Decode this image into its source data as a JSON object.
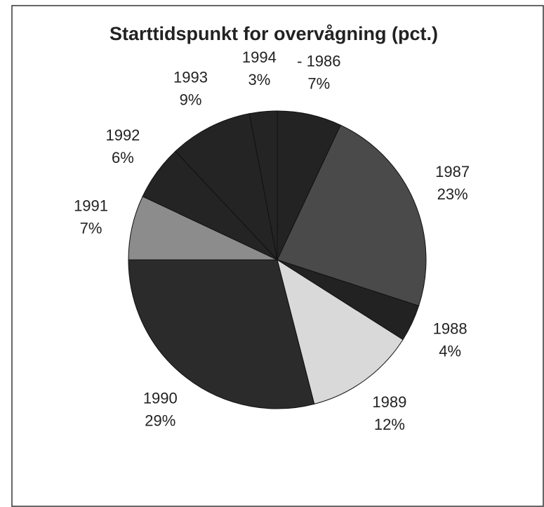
{
  "chart_data": {
    "type": "pie",
    "title": "Starttidspunkt for overvågning (pct.)",
    "categories": [
      "- 1986",
      "1987",
      "1988",
      "1989",
      "1990",
      "1991",
      "1992",
      "1993",
      "1994"
    ],
    "values": [
      7,
      23,
      4,
      12,
      29,
      7,
      6,
      9,
      3
    ],
    "value_labels": [
      "7%",
      "23%",
      "4%",
      "12%",
      "29%",
      "7%",
      "6%",
      "9%",
      "3%"
    ],
    "colors": [
      "#232323",
      "#4a4a4a",
      "#222222",
      "#d9d9d9",
      "#2b2b2b",
      "#8c8c8c",
      "#242424",
      "#242424",
      "#242424"
    ]
  }
}
